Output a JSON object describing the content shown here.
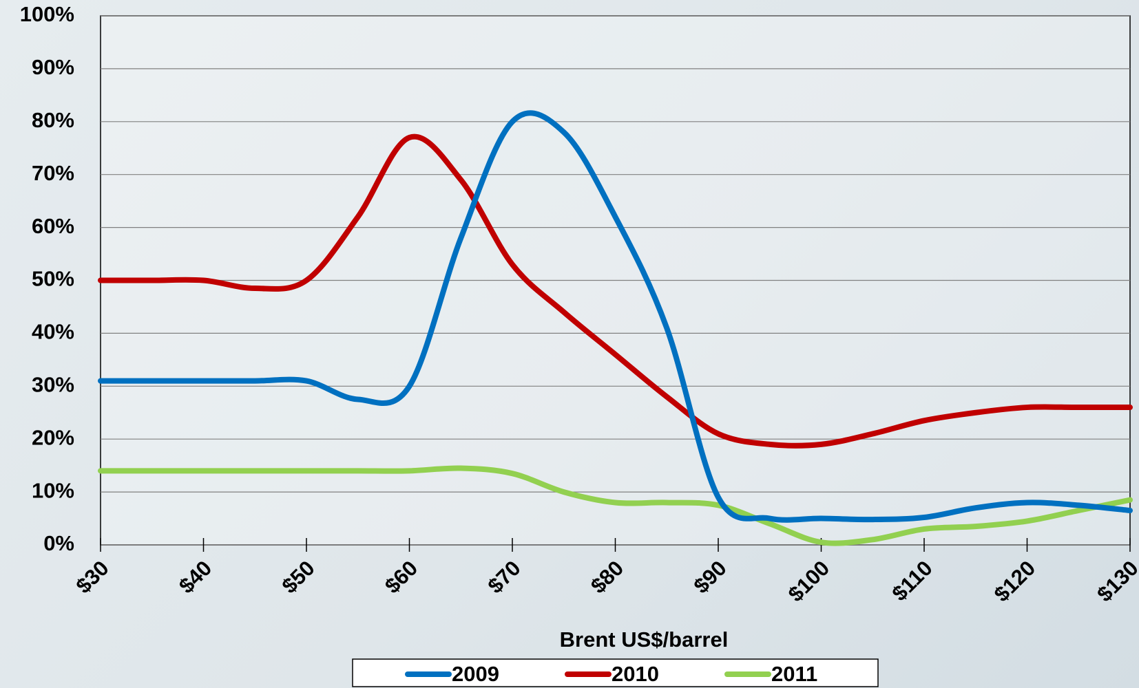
{
  "chart_data": {
    "type": "line",
    "xlabel": "Brent US$/barrel",
    "x": [
      30,
      35,
      40,
      45,
      50,
      55,
      60,
      65,
      70,
      75,
      80,
      85,
      90,
      95,
      100,
      105,
      110,
      115,
      120,
      125,
      130
    ],
    "series": [
      {
        "name": "2009",
        "color": "#0070c0",
        "values": [
          31,
          31,
          31,
          31,
          31,
          27.5,
          30,
          58,
          80,
          78,
          62,
          41,
          9,
          5,
          5,
          4.8,
          5.2,
          7,
          8,
          7.5,
          6.5
        ]
      },
      {
        "name": "2010",
        "color": "#c00000",
        "values": [
          50,
          50,
          50,
          48.5,
          50,
          62,
          77,
          69,
          53,
          44,
          36,
          28,
          21,
          19,
          19,
          21,
          23.5,
          25,
          26,
          26,
          26
        ]
      },
      {
        "name": "2011",
        "color": "#92d050",
        "values": [
          14,
          14,
          14,
          14,
          14,
          14,
          14,
          14.5,
          13.5,
          10,
          8,
          8,
          7.5,
          4,
          0.5,
          1,
          3,
          3.5,
          4.5,
          6.5,
          8.5
        ]
      }
    ],
    "xlim": [
      30,
      130
    ],
    "xticks": [
      {
        "value": 30,
        "label": "$30"
      },
      {
        "value": 40,
        "label": "$40"
      },
      {
        "value": 50,
        "label": "$50"
      },
      {
        "value": 60,
        "label": "$60"
      },
      {
        "value": 70,
        "label": "$70"
      },
      {
        "value": 80,
        "label": "$80"
      },
      {
        "value": 90,
        "label": "$90"
      },
      {
        "value": 100,
        "label": "$100"
      },
      {
        "value": 110,
        "label": "$110"
      },
      {
        "value": 120,
        "label": "$120"
      },
      {
        "value": 130,
        "label": "$130"
      }
    ],
    "ylim": [
      0,
      100
    ],
    "yticks": [
      {
        "value": 0,
        "label": "0%"
      },
      {
        "value": 10,
        "label": "10%"
      },
      {
        "value": 20,
        "label": "20%"
      },
      {
        "value": 30,
        "label": "30%"
      },
      {
        "value": 40,
        "label": "40%"
      },
      {
        "value": 50,
        "label": "50%"
      },
      {
        "value": 60,
        "label": "60%"
      },
      {
        "value": 70,
        "label": "70%"
      },
      {
        "value": 80,
        "label": "80%"
      },
      {
        "value": 90,
        "label": "90%"
      },
      {
        "value": 100,
        "label": "100%"
      }
    ],
    "grid": true,
    "legend": "bottom"
  }
}
